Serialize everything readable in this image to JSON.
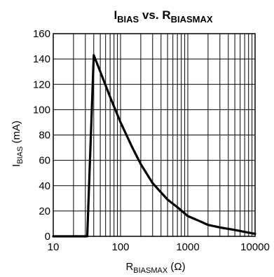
{
  "chart_data": {
    "type": "line",
    "title": {
      "main": "I",
      "main_sub": "BIAS",
      "middle": " vs. R",
      "middle_sub": "BIASMAX"
    },
    "xlabel": {
      "main": "R",
      "sub": "BIASMAX",
      "unit": " (Ω)"
    },
    "ylabel": {
      "main": "I",
      "sub": "BIAS",
      "unit": " (mA)"
    },
    "x_scale": "log",
    "xlim": [
      10,
      10000
    ],
    "ylim": [
      0,
      160
    ],
    "x_ticks": [
      10,
      100,
      1000,
      10000
    ],
    "x_tick_labels": [
      "10",
      "100",
      "1000",
      "10000"
    ],
    "y_ticks": [
      0,
      20,
      40,
      60,
      80,
      100,
      120,
      140,
      160
    ],
    "y_tick_labels": [
      "0",
      "20",
      "40",
      "60",
      "80",
      "100",
      "120",
      "140",
      "160"
    ],
    "grid": true,
    "series": [
      {
        "color": "#000000",
        "points": [
          [
            10,
            0
          ],
          [
            32,
            0
          ],
          [
            40,
            143
          ],
          [
            50,
            130
          ],
          [
            70,
            110
          ],
          [
            100,
            90
          ],
          [
            150,
            70
          ],
          [
            200,
            57
          ],
          [
            300,
            42
          ],
          [
            500,
            29
          ],
          [
            700,
            23
          ],
          [
            1000,
            16
          ],
          [
            1500,
            12
          ],
          [
            2000,
            9
          ],
          [
            3000,
            7
          ],
          [
            5000,
            5
          ],
          [
            7000,
            3.5
          ],
          [
            10000,
            2
          ]
        ]
      }
    ]
  }
}
